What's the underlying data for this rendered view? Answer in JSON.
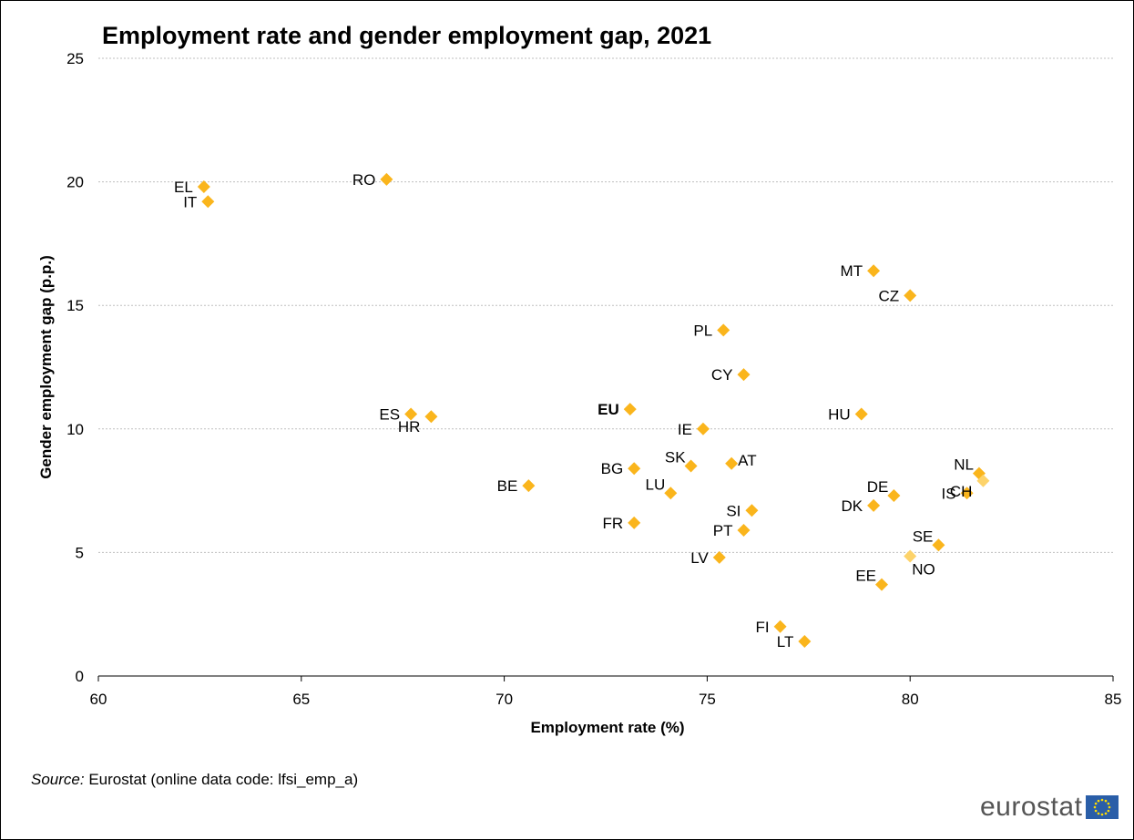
{
  "source": {
    "label": "Source:",
    "text": "Eurostat (online data code: lfsi_emp_a)"
  },
  "logo": {
    "text": "eurostat"
  },
  "colors": {
    "marker": "#FAB51C",
    "marker_light": "#FDD36A",
    "grid": "#BFBFBF",
    "axis": "#000000"
  },
  "chart_data": {
    "type": "scatter",
    "title": "Employment rate and gender employment gap, 2021",
    "xlabel": "Employment rate (%)",
    "ylabel": "Gender employment gap (p.p.)",
    "xlim": [
      60,
      85
    ],
    "ylim": [
      0,
      25
    ],
    "xticks": [
      60,
      65,
      70,
      75,
      80,
      85
    ],
    "yticks": [
      0,
      5,
      10,
      15,
      20,
      25
    ],
    "grid": "horizontal",
    "points": [
      {
        "label": "EL",
        "x": 62.6,
        "y": 19.8,
        "label_side": "left"
      },
      {
        "label": "IT",
        "x": 62.7,
        "y": 19.2,
        "label_side": "left"
      },
      {
        "label": "RO",
        "x": 67.1,
        "y": 20.1,
        "label_side": "left"
      },
      {
        "label": "MT",
        "x": 79.1,
        "y": 16.4,
        "label_side": "left"
      },
      {
        "label": "CZ",
        "x": 80.0,
        "y": 15.4,
        "label_side": "left"
      },
      {
        "label": "PL",
        "x": 75.4,
        "y": 14.0,
        "label_side": "left"
      },
      {
        "label": "CY",
        "x": 75.9,
        "y": 12.2,
        "label_side": "left"
      },
      {
        "label": "ES",
        "x": 67.7,
        "y": 10.6,
        "label_side": "left"
      },
      {
        "label": "HR",
        "x": 68.2,
        "y": 10.5,
        "label_side": "below-left"
      },
      {
        "label": "EU",
        "x": 73.1,
        "y": 10.8,
        "label_side": "left",
        "bold": true
      },
      {
        "label": "HU",
        "x": 78.8,
        "y": 10.6,
        "label_side": "left"
      },
      {
        "label": "IE",
        "x": 74.9,
        "y": 10.0,
        "label_side": "left"
      },
      {
        "label": "SK",
        "x": 74.6,
        "y": 8.5,
        "label_side": "above-left"
      },
      {
        "label": "AT",
        "x": 75.6,
        "y": 8.6,
        "label_side": "right"
      },
      {
        "label": "BG",
        "x": 73.2,
        "y": 8.4,
        "label_side": "left"
      },
      {
        "label": "LU",
        "x": 74.1,
        "y": 7.4,
        "label_side": "above-left"
      },
      {
        "label": "BE",
        "x": 70.6,
        "y": 7.7,
        "label_side": "left"
      },
      {
        "label": "NL",
        "x": 81.7,
        "y": 8.2,
        "label_side": "above-left"
      },
      {
        "label": "CH",
        "x": 81.8,
        "y": 7.9,
        "label_side": "below-left",
        "light": true
      },
      {
        "label": "IS",
        "x": 81.4,
        "y": 7.4,
        "label_side": "left"
      },
      {
        "label": "DE",
        "x": 79.6,
        "y": 7.3,
        "label_side": "above-left"
      },
      {
        "label": "DK",
        "x": 79.1,
        "y": 6.9,
        "label_side": "left"
      },
      {
        "label": "SI",
        "x": 76.1,
        "y": 6.7,
        "label_side": "left"
      },
      {
        "label": "FR",
        "x": 73.2,
        "y": 6.2,
        "label_side": "left"
      },
      {
        "label": "PT",
        "x": 75.9,
        "y": 5.9,
        "label_side": "left"
      },
      {
        "label": "SE",
        "x": 80.7,
        "y": 5.3,
        "label_side": "above-left"
      },
      {
        "label": "LV",
        "x": 75.3,
        "y": 4.8,
        "label_side": "left"
      },
      {
        "label": "NO",
        "x": 80.0,
        "y": 4.85,
        "label_side": "below-right",
        "light": true
      },
      {
        "label": "EE",
        "x": 79.3,
        "y": 3.7,
        "label_side": "above-left"
      },
      {
        "label": "FI",
        "x": 76.8,
        "y": 2.0,
        "label_side": "left"
      },
      {
        "label": "LT",
        "x": 77.4,
        "y": 1.4,
        "label_side": "left"
      }
    ]
  }
}
